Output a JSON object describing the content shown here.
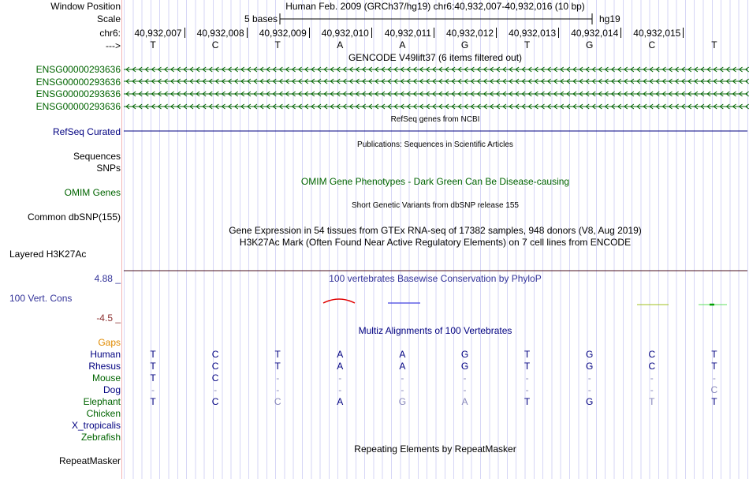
{
  "header": {
    "window_position_label": "Window Position",
    "window_position": "Human Feb. 2009 (GRCh37/hg19)   chr6:40,932,007-40,932,016 (10 bp)",
    "scale_label": "Scale",
    "scale_text": "5 bases",
    "assembly": "hg19",
    "chrom_label": "chr6:",
    "strand_label": "--->"
  },
  "ruler": [
    "40,932,007",
    "40,932,008",
    "40,932,009",
    "40,932,010",
    "40,932,011",
    "40,932,012",
    "40,932,013",
    "40,932,014",
    "40,932,015"
  ],
  "bases": [
    "T",
    "C",
    "T",
    "A",
    "A",
    "G",
    "T",
    "G",
    "C",
    "T"
  ],
  "tracks": {
    "gencode_title": "GENCODE V49lift37 (6 items filtered out)",
    "gencode_items": [
      "ENSG00000293636",
      "ENSG00000293636",
      "ENSG00000293636",
      "ENSG00000293636"
    ],
    "refseq_title": "RefSeq genes from NCBI",
    "refseq_label": "RefSeq Curated",
    "pubs_title": "Publications: Sequences in Scientific Articles",
    "sequences_label": "Sequences",
    "snps_label": "SNPs",
    "omim_title": "OMIM Gene Phenotypes - Dark Green Can Be Disease-causing",
    "omim_label": "OMIM Genes",
    "dbsnp_title": "Short Genetic Variants from dbSNP release 155",
    "dbsnp_label": "Common dbSNP(155)",
    "gtex_title": "Gene Expression in 54 tissues from GTEx RNA-seq of 17382 samples, 948 donors (V8, Aug 2019)",
    "h3k_title": "H3K27Ac Mark (Often Found Near Active Regulatory Elements) on 7 cell lines from ENCODE",
    "h3k_label": "Layered H3K27Ac",
    "cons_title": "100 vertebrates Basewise Conservation by PhyloP",
    "cons_label": "100 Vert. Cons",
    "cons_max": "4.88 _",
    "cons_min": "-4.5 _",
    "multiz_title": "Multiz Alignments of 100 Vertebrates",
    "gaps_label": "Gaps",
    "repeat_title": "Repeating Elements by RepeatMasker",
    "repeat_label": "RepeatMasker"
  },
  "species": [
    {
      "name": "Human",
      "color": "#000080",
      "bases": [
        "T",
        "C",
        "T",
        "A",
        "A",
        "G",
        "T",
        "G",
        "C",
        "T"
      ],
      "dim": []
    },
    {
      "name": "Rhesus",
      "color": "#000080",
      "bases": [
        "T",
        "C",
        "T",
        "A",
        "A",
        "G",
        "T",
        "G",
        "C",
        "T"
      ],
      "dim": []
    },
    {
      "name": "Mouse",
      "color": "#006400",
      "bases": [
        "T",
        "C",
        "-",
        "-",
        "-",
        "-",
        "-",
        "-",
        "-",
        "-"
      ],
      "dim": [
        2,
        3,
        4,
        5,
        6,
        7,
        8,
        9
      ]
    },
    {
      "name": "Dog",
      "color": "#000080",
      "bases": [
        "-",
        "-",
        "-",
        "-",
        "-",
        "-",
        "-",
        "-",
        "-",
        "C"
      ],
      "dim": [
        0,
        1,
        2,
        3,
        4,
        5,
        6,
        7,
        8,
        9
      ]
    },
    {
      "name": "Elephant",
      "color": "#006400",
      "bases": [
        "T",
        "C",
        "C",
        "A",
        "G",
        "A",
        "T",
        "G",
        "T",
        "T"
      ],
      "dim": [
        2,
        4,
        5,
        8
      ]
    },
    {
      "name": "Chicken",
      "color": "#006400",
      "bases": [],
      "dim": []
    },
    {
      "name": "X_tropicalis",
      "color": "#000080",
      "bases": [],
      "dim": []
    },
    {
      "name": "Zebrafish",
      "color": "#006400",
      "bases": [],
      "dim": []
    }
  ]
}
